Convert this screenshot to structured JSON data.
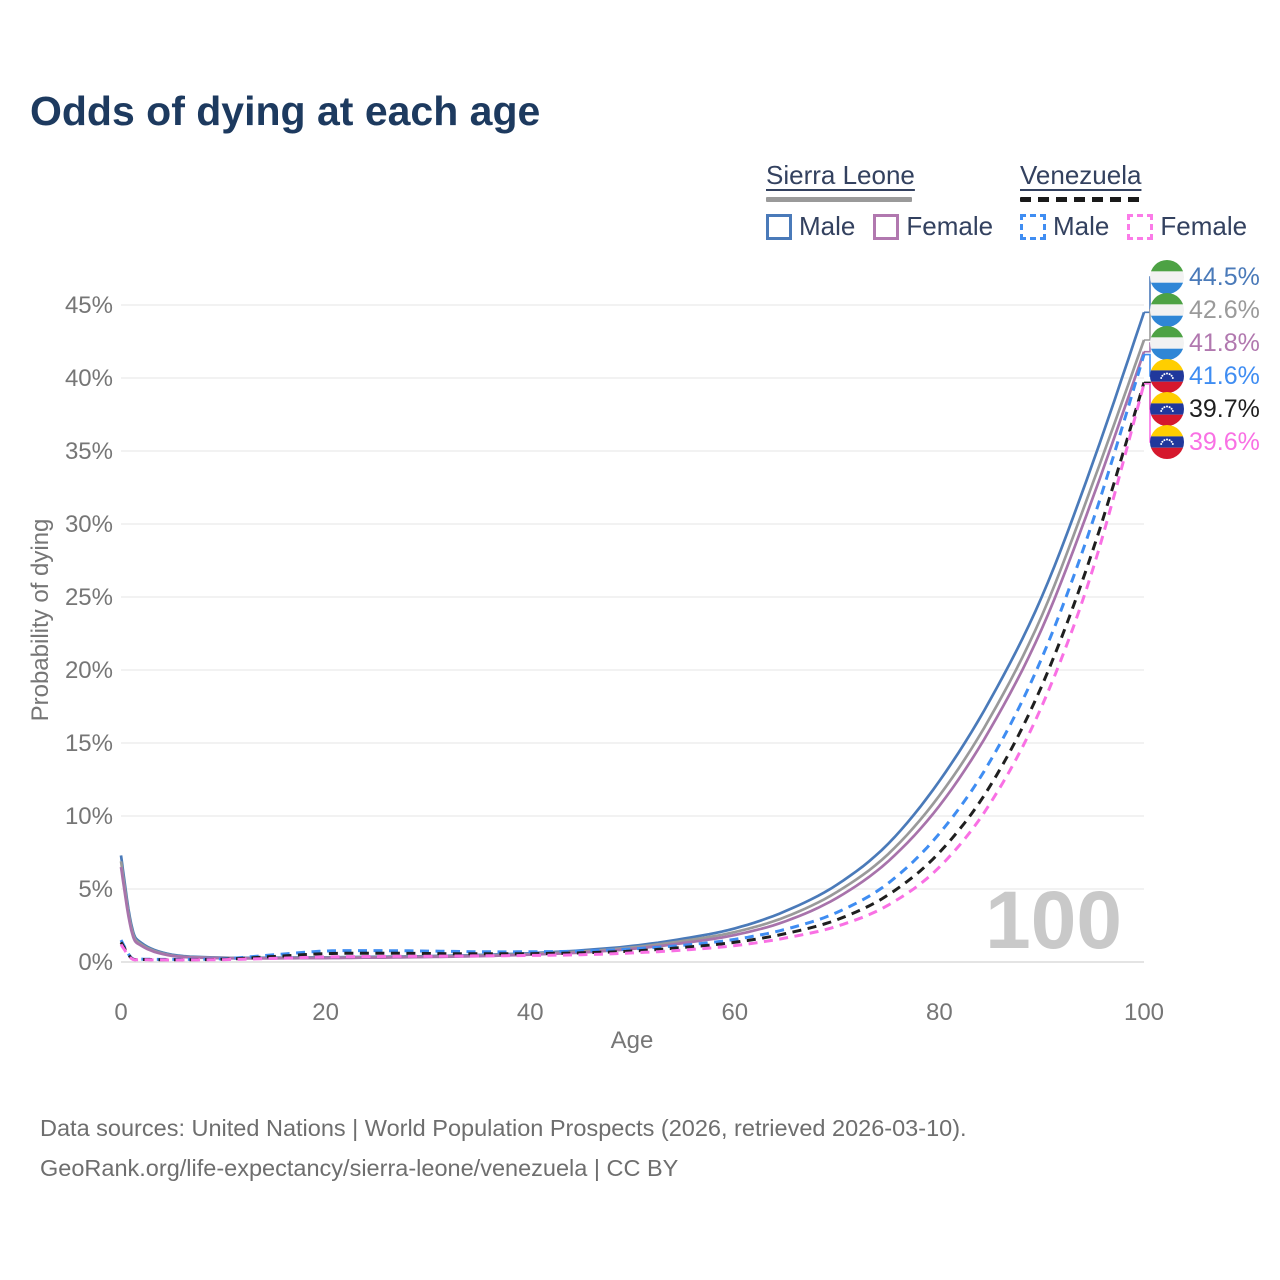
{
  "header": {
    "title": "Odds of dying at each age"
  },
  "legend": {
    "groups": [
      {
        "country": "Sierra Leone",
        "line_style": "solid",
        "line_color": "#9a9a9a",
        "items": [
          {
            "label": "Male",
            "color": "#4a7ab9",
            "dash": false
          },
          {
            "label": "Female",
            "color": "#b178af",
            "dash": false
          }
        ]
      },
      {
        "country": "Venezuela",
        "line_style": "dashed",
        "line_color": "#1a1a1a",
        "items": [
          {
            "label": "Male",
            "color": "#3f8df2",
            "dash": true
          },
          {
            "label": "Female",
            "color": "#fb7be8",
            "dash": true
          }
        ]
      }
    ]
  },
  "axes": {
    "x_label": "Age",
    "y_label": "Probability of dying",
    "x_ticks": [
      "0",
      "20",
      "40",
      "60",
      "80",
      "100"
    ],
    "y_ticks": [
      "0%",
      "5%",
      "10%",
      "15%",
      "20%",
      "25%",
      "30%",
      "35%",
      "40%",
      "45%"
    ]
  },
  "watermark": "100",
  "flags": {
    "sierra-leone": {
      "top": "#4da244",
      "middle": "#f2f2f2",
      "bottom": "#2f86d6"
    },
    "venezuela": {
      "top": "#ffce00",
      "middle": "#20389c",
      "bottom": "#d5182d",
      "stars": "#ffffff"
    }
  },
  "end_labels": [
    {
      "value": "44.5%",
      "country": "sierra-leone",
      "color": "#4a7ab9"
    },
    {
      "value": "42.6%",
      "country": "sierra-leone",
      "color": "#9a9a9a"
    },
    {
      "value": "41.8%",
      "country": "sierra-leone",
      "color": "#b178af"
    },
    {
      "value": "41.6%",
      "country": "venezuela",
      "color": "#3f8df2"
    },
    {
      "value": "39.7%",
      "country": "venezuela",
      "color": "#1f1f1f"
    },
    {
      "value": "39.6%",
      "country": "venezuela",
      "color": "#f970e4"
    }
  ],
  "footer": {
    "line1": "Data sources: United Nations | World Population Prospects (2026, retrieved 2026-03-10).",
    "line2": "GeoRank.org/life-expectancy/sierra-leone/venezuela | CC BY"
  },
  "chart_data": {
    "type": "line",
    "title": "Odds of dying at each age",
    "xlabel": "Age",
    "ylabel": "Probability of dying",
    "xlim": [
      0,
      100
    ],
    "ylim": [
      0,
      45
    ],
    "grid": "horizontal",
    "legend_position": "top-right",
    "x": [
      0,
      1,
      2,
      5,
      10,
      15,
      20,
      25,
      30,
      35,
      40,
      45,
      50,
      55,
      60,
      65,
      70,
      75,
      80,
      85,
      90,
      95,
      100
    ],
    "y_unit": "percent",
    "series": [
      {
        "name": "Sierra Leone Male",
        "color": "#4a7ab9",
        "dash": false,
        "end_value_pct": 44.5,
        "values": [
          7.3,
          2.6,
          1.3,
          0.5,
          0.3,
          0.3,
          0.32,
          0.36,
          0.4,
          0.48,
          0.6,
          0.8,
          1.1,
          1.6,
          2.3,
          3.5,
          5.3,
          8.1,
          12.4,
          18.0,
          25.0,
          34.2,
          44.5
        ]
      },
      {
        "name": "Sierra Leone Both",
        "color": "#9a9a9a",
        "dash": false,
        "end_value_pct": 42.6,
        "values": [
          6.9,
          2.4,
          1.2,
          0.45,
          0.28,
          0.27,
          0.3,
          0.33,
          0.37,
          0.44,
          0.55,
          0.72,
          1.0,
          1.45,
          2.05,
          3.1,
          4.8,
          7.4,
          11.4,
          16.8,
          23.7,
          32.8,
          42.6
        ]
      },
      {
        "name": "Sierra Leone Female",
        "color": "#a873ab",
        "dash": false,
        "end_value_pct": 41.8,
        "values": [
          6.5,
          2.2,
          1.1,
          0.42,
          0.26,
          0.25,
          0.27,
          0.3,
          0.34,
          0.4,
          0.5,
          0.65,
          0.9,
          1.3,
          1.85,
          2.8,
          4.4,
          6.9,
          10.7,
          16.0,
          22.8,
          31.8,
          41.8
        ]
      },
      {
        "name": "Venezuela Male",
        "color": "#3f8df2",
        "dash": true,
        "end_value_pct": 41.6,
        "values": [
          1.5,
          0.3,
          0.2,
          0.18,
          0.22,
          0.5,
          0.75,
          0.78,
          0.75,
          0.7,
          0.7,
          0.75,
          0.9,
          1.15,
          1.55,
          2.25,
          3.4,
          5.4,
          8.8,
          13.8,
          20.8,
          30.2,
          41.6
        ]
      },
      {
        "name": "Venezuela Both",
        "color": "#1f1f1f",
        "dash": true,
        "end_value_pct": 39.7,
        "values": [
          1.35,
          0.28,
          0.18,
          0.16,
          0.19,
          0.38,
          0.57,
          0.6,
          0.58,
          0.56,
          0.57,
          0.63,
          0.75,
          1.0,
          1.35,
          1.95,
          2.9,
          4.6,
          7.5,
          12.1,
          18.9,
          28.2,
          39.7
        ]
      },
      {
        "name": "Venezuela Female",
        "color": "#f970e4",
        "dash": true,
        "end_value_pct": 39.6,
        "values": [
          1.2,
          0.25,
          0.16,
          0.14,
          0.16,
          0.25,
          0.35,
          0.38,
          0.4,
          0.42,
          0.45,
          0.5,
          0.62,
          0.82,
          1.12,
          1.65,
          2.45,
          3.9,
          6.5,
          10.9,
          17.5,
          26.9,
          39.6
        ]
      }
    ]
  }
}
